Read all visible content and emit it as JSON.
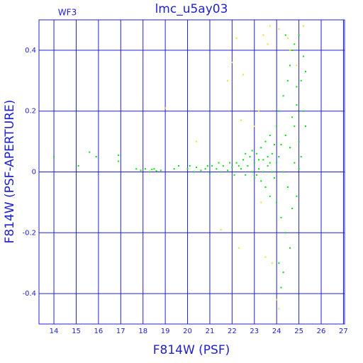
{
  "chart_data": {
    "type": "scatter",
    "title": "lmc_u5ay03",
    "annotation": "WF3",
    "x_label": "F814W (PSF)",
    "y_label": "F814W (PSF-APERTURE)",
    "xlim": [
      13.33,
      27.05
    ],
    "ylim": [
      -0.5,
      0.5
    ],
    "xticks": [
      14,
      15,
      16,
      17,
      18,
      19,
      20,
      21,
      22,
      23,
      24,
      25,
      26,
      27
    ],
    "yticks": [
      -0.4,
      -0.2,
      0,
      0.2,
      0.4
    ],
    "grid": true,
    "series": [
      {
        "color": "#00e000",
        "x": [
          14.0,
          15.1,
          15.6,
          15.9,
          16.9,
          16.9,
          17.7,
          17.9,
          18.1,
          18.3,
          18.4,
          18.6,
          18.8,
          18.5,
          19.4,
          19.6,
          20.0,
          20.1,
          20.3,
          20.4,
          20.6,
          20.8,
          21.0,
          21.1,
          21.3,
          21.5,
          21.6,
          21.8,
          22.0,
          22.1,
          22.2,
          22.4,
          22.5,
          22.6,
          22.7,
          22.8,
          22.9,
          23.0,
          23.0,
          23.1,
          23.2,
          23.3,
          23.3,
          23.4,
          23.5,
          23.5,
          23.6,
          23.7,
          23.7,
          23.8,
          23.9,
          24.0,
          24.0,
          24.1,
          24.1,
          24.2,
          24.2,
          24.3,
          24.3,
          24.4,
          24.4,
          24.5,
          24.5,
          24.6,
          24.6,
          24.7,
          24.7,
          24.8,
          24.8,
          24.9,
          24.9,
          25.0,
          25.0,
          25.1,
          25.1,
          25.2,
          25.2,
          25.3,
          25.3,
          24.1,
          24.3,
          23.8,
          23.6,
          23.4,
          22.9,
          23.9,
          24.6,
          24.9,
          24.7,
          23.2,
          22.3,
          21.9,
          20.9,
          21.4,
          24.2,
          24.4,
          24.0,
          25.0,
          24.8,
          23.7,
          23.1,
          22.6
        ],
        "y": [
          0.05,
          0.02,
          0.065,
          0.05,
          0.055,
          0.035,
          0.01,
          0.005,
          0.01,
          0.0,
          0.008,
          0.003,
          0.005,
          0.01,
          0.01,
          0.02,
          0.01,
          0.02,
          0.0,
          0.015,
          0.005,
          0.01,
          -0.005,
          0.02,
          0.01,
          0.0,
          0.02,
          0.005,
          0.015,
          -0.01,
          0.03,
          0.01,
          0.04,
          -0.01,
          0.02,
          0.05,
          0.0,
          0.03,
          -0.02,
          0.06,
          0.01,
          0.08,
          -0.03,
          0.04,
          0.1,
          -0.05,
          0.02,
          0.12,
          -0.08,
          0.06,
          -0.02,
          0.15,
          -0.1,
          0.05,
          0.2,
          -0.15,
          0.09,
          0.25,
          0.0,
          -0.2,
          0.12,
          0.3,
          -0.05,
          0.35,
          0.08,
          -0.12,
          0.18,
          0.42,
          0.03,
          0.22,
          -0.08,
          0.45,
          0.1,
          0.3,
          0.05,
          0.38,
          0.2,
          0.33,
          0.15,
          -0.3,
          -0.33,
          0.0,
          0.05,
          0.0,
          0.07,
          0.09,
          -0.25,
          0.28,
          0.4,
          0.04,
          0.02,
          0.03,
          0.02,
          0.03,
          -0.38,
          0.45,
          0.03,
          0.01,
          0.15,
          0.03,
          -0.01,
          0.06
        ]
      },
      {
        "color": "#f0e020",
        "x": [
          22.2,
          23.4,
          23.7,
          24.1,
          24.6,
          25.2,
          23.6,
          22.0,
          21.8,
          22.5,
          19.0,
          20.4,
          23.2,
          22.3,
          21.5,
          23.5,
          23.8,
          24.1,
          24.0,
          23.3,
          22.4,
          23.0,
          24.5,
          24.9
        ],
        "y": [
          0.44,
          0.45,
          0.48,
          0.47,
          0.4,
          0.48,
          0.42,
          0.36,
          0.3,
          0.32,
          0.21,
          0.1,
          0.2,
          -0.25,
          -0.19,
          -0.28,
          -0.3,
          -0.45,
          -0.42,
          -0.1,
          0.17,
          0.15,
          0.44,
          0.35
        ]
      }
    ]
  }
}
